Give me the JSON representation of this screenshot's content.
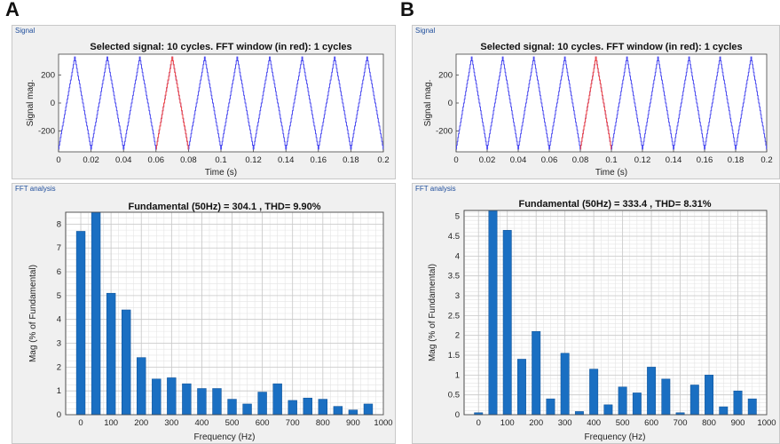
{
  "panels": [
    {
      "label": "A",
      "signal_box_label": "Signal",
      "fft_box_label": "FFT analysis",
      "signal": {
        "title": "Selected signal: 10 cycles. FFT window (in red): 1 cycles",
        "xlabel": "Time (s)",
        "ylabel": "Signal mag.",
        "xlim": [
          0,
          0.2
        ],
        "ylim": [
          -350,
          350
        ],
        "xticks": [
          "0",
          "0.02",
          "0.04",
          "0.06",
          "0.08",
          "0.1",
          "0.12",
          "0.14",
          "0.16",
          "0.18",
          "0.2"
        ],
        "yticks": [
          "200",
          "0",
          "-200"
        ],
        "ytick_values": [
          200,
          0,
          -200
        ],
        "amplitude": 330,
        "frequency_hz": 50,
        "fft_window": [
          0.06,
          0.08
        ],
        "line_color": "#4d4df0",
        "window_color": "#f05050"
      },
      "fft": {
        "title": "Fundamental (50Hz) = 304.1 , THD= 9.90%",
        "xlabel": "Frequency (Hz)",
        "ylabel": "Mag (% of Fundamental)",
        "xlim": [
          -50,
          1000
        ],
        "ylim": [
          0,
          8.5
        ],
        "xticks": [
          "0",
          "100",
          "200",
          "300",
          "400",
          "500",
          "600",
          "700",
          "800",
          "900",
          "1000"
        ],
        "yticks": [
          "0",
          "1",
          "2",
          "3",
          "4",
          "5",
          "6",
          "7",
          "8"
        ],
        "bar_color": "#1a6fc2"
      },
      "chart_data": {
        "type": "bar",
        "title": "Fundamental (50Hz) = 304.1 , THD= 9.90%",
        "xlabel": "Frequency (Hz)",
        "ylabel": "Mag (% of Fundamental)",
        "x": [
          0,
          50,
          100,
          150,
          200,
          250,
          300,
          350,
          400,
          450,
          500,
          550,
          600,
          650,
          700,
          750,
          800,
          850,
          900,
          950
        ],
        "values": [
          7.7,
          8.5,
          5.1,
          4.4,
          2.4,
          1.5,
          1.55,
          1.3,
          1.1,
          1.1,
          0.65,
          0.45,
          0.95,
          1.3,
          0.6,
          0.7,
          0.65,
          0.35,
          0.2,
          0.45
        ],
        "ylim": [
          0,
          8.5
        ]
      }
    },
    {
      "label": "B",
      "signal_box_label": "Signal",
      "fft_box_label": "FFT analysis",
      "signal": {
        "title": "Selected signal: 10 cycles. FFT window (in red): 1 cycles",
        "xlabel": "Time (s)",
        "ylabel": "Signal mag.",
        "xlim": [
          0,
          0.2
        ],
        "ylim": [
          -350,
          350
        ],
        "xticks": [
          "0",
          "0.02",
          "0.04",
          "0.06",
          "0.08",
          "0.1",
          "0.12",
          "0.14",
          "0.16",
          "0.18",
          "0.2"
        ],
        "yticks": [
          "200",
          "0",
          "-200"
        ],
        "ytick_values": [
          200,
          0,
          -200
        ],
        "amplitude": 330,
        "frequency_hz": 50,
        "fft_window": [
          0.08,
          0.1
        ],
        "line_color": "#4d4df0",
        "window_color": "#f05050"
      },
      "fft": {
        "title": "Fundamental (50Hz) = 333.4 , THD= 8.31%",
        "xlabel": "Frequency (Hz)",
        "ylabel": "Mag (% of Fundamental)",
        "xlim": [
          -50,
          1000
        ],
        "ylim": [
          0,
          5.15
        ],
        "xticks": [
          "0",
          "100",
          "200",
          "300",
          "400",
          "500",
          "600",
          "700",
          "800",
          "900",
          "1000"
        ],
        "yticks": [
          "0",
          "0.5",
          "1",
          "1.5",
          "2",
          "2.5",
          "3",
          "3.5",
          "4",
          "4.5",
          "5"
        ],
        "bar_color": "#1a6fc2"
      },
      "chart_data": {
        "type": "bar",
        "title": "Fundamental (50Hz) = 333.4 , THD= 8.31%",
        "xlabel": "Frequency (Hz)",
        "ylabel": "Mag (% of Fundamental)",
        "x": [
          0,
          50,
          100,
          150,
          200,
          250,
          300,
          350,
          400,
          450,
          500,
          550,
          600,
          650,
          700,
          750,
          800,
          850,
          900,
          950
        ],
        "values": [
          0.05,
          5.15,
          4.65,
          1.4,
          2.1,
          0.4,
          1.55,
          0.08,
          1.15,
          0.25,
          0.7,
          0.55,
          1.2,
          0.9,
          0.05,
          0.75,
          1.0,
          0.2,
          0.6,
          0.4
        ],
        "ylim": [
          0,
          5.15
        ]
      }
    }
  ]
}
